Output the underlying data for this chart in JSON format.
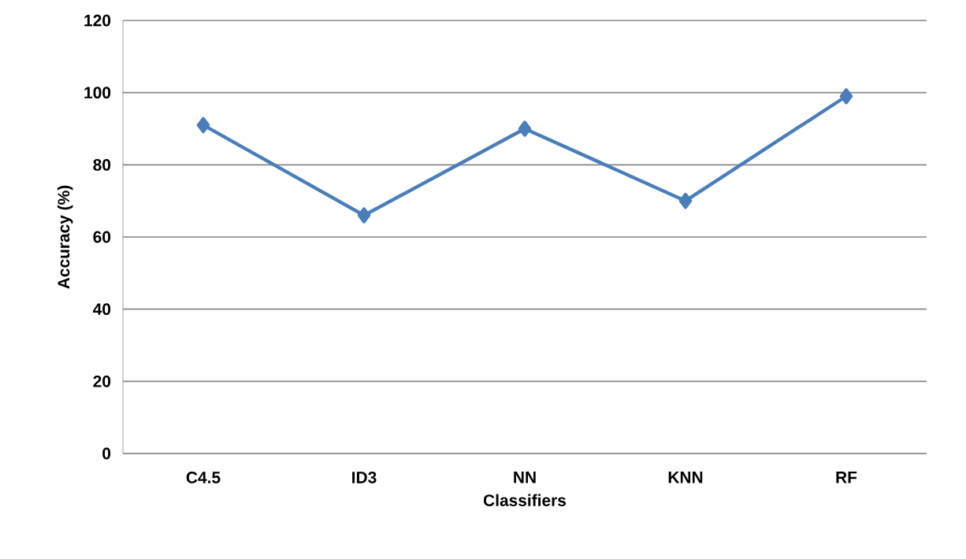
{
  "chart_data": {
    "type": "line",
    "xlabel": "Classifiers",
    "ylabel": "Accuracy (%)",
    "categories": [
      "C4.5",
      "ID3",
      "NN",
      "KNN",
      "RF"
    ],
    "series": [
      {
        "color": "#4a7ebb",
        "values": [
          91,
          66,
          90,
          70,
          99
        ]
      }
    ],
    "ylim": [
      0,
      120
    ],
    "yticks": [
      0,
      20,
      40,
      60,
      80,
      100,
      120
    ],
    "grid": "y",
    "marker": "diamond",
    "line_style": "solid"
  }
}
